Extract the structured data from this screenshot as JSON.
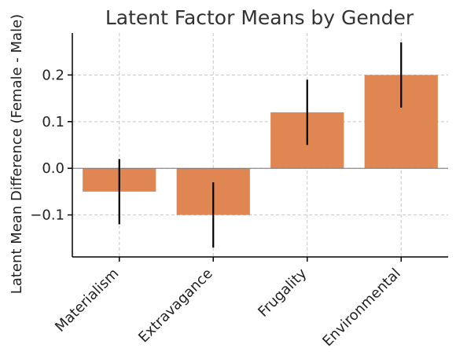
{
  "chart_data": {
    "type": "bar",
    "title": "Latent Factor Means by Gender",
    "xlabel": "",
    "ylabel": "Latent Mean Difference (Female - Male)",
    "categories": [
      "Materialism",
      "Extravagance",
      "Frugality",
      "Environmental"
    ],
    "values": [
      -0.05,
      -0.1,
      0.12,
      0.2
    ],
    "error_bars": [
      {
        "low": -0.12,
        "high": 0.02
      },
      {
        "low": -0.17,
        "high": -0.03
      },
      {
        "low": 0.05,
        "high": 0.19
      },
      {
        "low": 0.13,
        "high": 0.27
      }
    ],
    "yticks": [
      -0.1,
      0.0,
      0.1,
      0.2
    ],
    "ytick_labels": [
      "−0.1",
      "0.0",
      "0.1",
      "0.2"
    ],
    "ylim": [
      -0.19,
      0.29
    ],
    "grid": true,
    "colors": {
      "bar": "#e08652",
      "error_bar": "#000000",
      "grid": "#c8c8c8",
      "axis": "#000000",
      "zero_line": "#777777"
    }
  }
}
